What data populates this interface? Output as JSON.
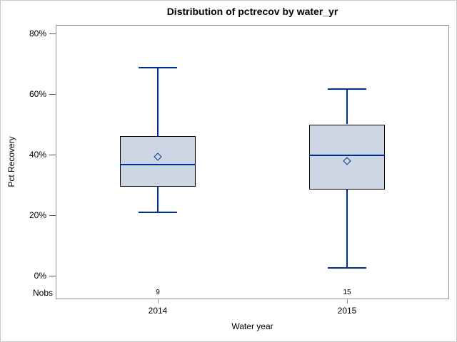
{
  "figure": {
    "title": "Distribution of pctrecov by water_yr",
    "nobs_row_label": "Nobs"
  },
  "chart_data": {
    "type": "boxplot",
    "title": "Distribution of pctrecov by water_yr",
    "xlabel": "Water year",
    "ylabel": "Pct Recovery",
    "ylim": [
      0,
      80
    ],
    "ytick_values": [
      0,
      20,
      40,
      60,
      80
    ],
    "ytick_labels": [
      "0%",
      "20%",
      "40%",
      "60%",
      "80%"
    ],
    "grid": false,
    "legend": "none",
    "categories": [
      "2014",
      "2015"
    ],
    "series": [
      {
        "category": "2014",
        "nobs": 9,
        "whisker_low": 21,
        "q1": 29.4,
        "median": 36.7,
        "q3": 46.1,
        "whisker_high": 68.7,
        "mean": 39.3
      },
      {
        "category": "2015",
        "nobs": 15,
        "whisker_low": 2.5,
        "q1": 28.4,
        "median": 39.7,
        "q3": 50.0,
        "whisker_high": 61.6,
        "mean": 37.9
      }
    ],
    "colors": {
      "box_fill": "#ccd6e4",
      "box_border": "#000000",
      "line": "#003096",
      "frame": "#949494",
      "text": "#000000"
    }
  }
}
